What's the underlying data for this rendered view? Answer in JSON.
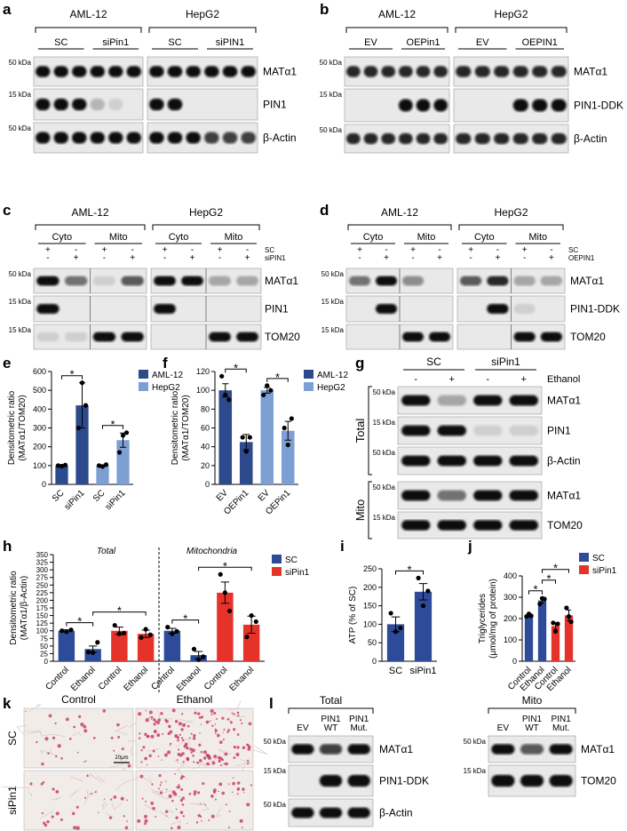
{
  "blots": {
    "a": {
      "letter": "a",
      "groups": [
        {
          "name": "AML-12",
          "subgroups": [
            "SC",
            "siPin1"
          ]
        },
        {
          "name": "HepG2",
          "subgroups": [
            "SC",
            "siPIN1"
          ]
        }
      ],
      "rows": [
        {
          "marker": "50 kDa",
          "protein": "MATα1"
        },
        {
          "marker": "15 kDa",
          "protein": "PIN1"
        },
        {
          "marker": "50 kDa",
          "protein": "β-Actin"
        }
      ]
    },
    "b": {
      "letter": "b",
      "groups": [
        {
          "name": "AML-12",
          "subgroups": [
            "EV",
            "OEPin1"
          ]
        },
        {
          "name": "HepG2",
          "subgroups": [
            "EV",
            "OEPIN1"
          ]
        }
      ],
      "rows": [
        {
          "marker": "50 kDa",
          "protein": "MATα1"
        },
        {
          "marker": "15 kDa",
          "protein": "PIN1-DDK"
        },
        {
          "marker": "50 kDa",
          "protein": "β-Actin"
        }
      ]
    },
    "c": {
      "letter": "c",
      "groups": [
        {
          "name": "AML-12",
          "subgroups": [
            "Cyto",
            "Mito"
          ]
        },
        {
          "name": "HepG2",
          "subgroups": [
            "Cyto",
            "Mito"
          ]
        }
      ],
      "treatments": [
        {
          "name": "SC",
          "signs": [
            "+",
            "-",
            "+",
            "-",
            "+",
            "-",
            "+",
            "-"
          ]
        },
        {
          "name": "siPIN1",
          "signs": [
            "-",
            "+",
            "-",
            "+",
            "-",
            "+",
            "-",
            "+"
          ]
        }
      ],
      "rows": [
        {
          "marker": "50 kDa",
          "protein": "MATα1"
        },
        {
          "marker": "15 kDa",
          "protein": "PIN1"
        },
        {
          "marker": "15 kDa",
          "protein": "TOM20"
        }
      ]
    },
    "d": {
      "letter": "d",
      "groups": [
        {
          "name": "AML-12",
          "subgroups": [
            "Cyto",
            "Mito"
          ]
        },
        {
          "name": "HepG2",
          "subgroups": [
            "Cyto",
            "Mito"
          ]
        }
      ],
      "treatments": [
        {
          "name": "SC",
          "signs": [
            "+",
            "-",
            "+",
            "-",
            "+",
            "-",
            "+",
            "-"
          ]
        },
        {
          "name": "OEPIN1",
          "signs": [
            "-",
            "+",
            "-",
            "+",
            "-",
            "+",
            "-",
            "+"
          ]
        }
      ],
      "rows": [
        {
          "marker": "50 kDa",
          "protein": "MATα1"
        },
        {
          "marker": "15 kDa",
          "protein": "PIN1-DDK"
        },
        {
          "marker": "15 kDa",
          "protein": "TOM20"
        }
      ]
    }
  },
  "blot_g": {
    "letter": "g",
    "subgroups": [
      "SC",
      "siPin1"
    ],
    "treatment": {
      "name": "Ethanol",
      "signs": [
        "-",
        "+",
        "-",
        "+"
      ]
    },
    "sections": [
      {
        "name": "Total",
        "rows": [
          {
            "marker": "50 kDa",
            "protein": "MATα1"
          },
          {
            "marker": "15 kDa",
            "protein": "PIN1"
          },
          {
            "marker": "50 kDa",
            "protein": "β-Actin"
          }
        ]
      },
      {
        "name": "Mito",
        "rows": [
          {
            "marker": "50 kDa",
            "protein": "MATα1"
          },
          {
            "marker": "15 kDa",
            "protein": "TOM20"
          }
        ]
      }
    ]
  },
  "blot_l": {
    "letter": "l",
    "blots": [
      {
        "name": "Total",
        "lanes": [
          [
            "EV"
          ],
          [
            "PIN1",
            "WT"
          ],
          [
            "PIN1",
            "Mut."
          ]
        ],
        "rows": [
          {
            "marker": "50 kDa",
            "protein": "MATα1"
          },
          {
            "marker": "15 kDa",
            "protein": "PIN1-DDK"
          },
          {
            "marker": "50 kDa",
            "protein": "β-Actin"
          }
        ]
      },
      {
        "name": "Mito",
        "lanes": [
          [
            "EV"
          ],
          [
            "PIN1",
            "WT"
          ],
          [
            "PIN1",
            "Mut."
          ]
        ],
        "rows": [
          {
            "marker": "50 kDa",
            "protein": "MATα1"
          },
          {
            "marker": "15 kDa",
            "protein": "TOM20"
          }
        ]
      }
    ]
  },
  "micrograph": {
    "letter": "k",
    "columns": [
      "Control",
      "Ethanol"
    ],
    "rows": [
      "SC",
      "siPin1"
    ],
    "scale_bar": "20μm"
  },
  "chart_data": [
    {
      "type": "bar",
      "letter": "e",
      "ylabel": [
        "Densitometric ratio",
        "(MATα1/TOM20)"
      ],
      "categories": [
        "SC",
        "siPin1",
        "SC",
        "siPin1"
      ],
      "xlabel_rotation": 45,
      "series": [
        {
          "name": "AML-12",
          "color": "#2c4a8c",
          "values": [
            100,
            420,
            null,
            null
          ],
          "errors": [
            3,
            120,
            null,
            null
          ],
          "points": [
            [
              100,
              97,
              103
            ],
            [
              300,
              540,
              420
            ],
            null,
            null
          ]
        },
        {
          "name": "HepG2",
          "color": "#7d9fd4",
          "values": [
            null,
            null,
            100,
            235
          ],
          "errors": [
            null,
            null,
            4,
            38
          ],
          "points": [
            null,
            null,
            [
              100,
              95,
              105
            ],
            [
              170,
              260,
              275
            ]
          ]
        }
      ],
      "ylim": [
        0,
        600
      ],
      "yticks": [
        0,
        100,
        200,
        300,
        400,
        500,
        600
      ],
      "legend": "right",
      "brackets": [
        {
          "between": [
            0,
            1
          ],
          "label": "*"
        },
        {
          "between": [
            2,
            3
          ],
          "label": "*"
        }
      ]
    },
    {
      "type": "bar",
      "letter": "f",
      "ylabel": [
        "Densitometric ratio",
        "(MATα1/TOM20)"
      ],
      "categories": [
        "EV",
        "OEPin1",
        "EV",
        "OEPin1"
      ],
      "xlabel_rotation": 45,
      "series": [
        {
          "name": "AML-12",
          "color": "#2c4a8c",
          "values": [
            100,
            45,
            null,
            null
          ],
          "errors": [
            7,
            8,
            null,
            null
          ],
          "points": [
            [
              115,
              95,
              90
            ],
            [
              50,
              35,
              50
            ],
            null,
            null
          ]
        },
        {
          "name": "HepG2",
          "color": "#7d9fd4",
          "values": [
            null,
            null,
            100,
            57
          ],
          "errors": [
            null,
            null,
            3,
            10
          ],
          "points": [
            null,
            null,
            [
              95,
              105,
              100
            ],
            [
              60,
              42,
              70
            ]
          ]
        }
      ],
      "ylim": [
        0,
        120
      ],
      "yticks": [
        0,
        20,
        40,
        60,
        80,
        100,
        120
      ],
      "legend": "right",
      "brackets": [
        {
          "between": [
            0,
            1
          ],
          "label": "*"
        },
        {
          "between": [
            2,
            3
          ],
          "label": "*"
        }
      ]
    },
    {
      "type": "bar",
      "letter": "h",
      "ylabel": [
        "Densitometric ratio",
        "(MATα1/β-Actin)"
      ],
      "categories": [
        "Control",
        "Ethanol",
        "Control",
        "Ethanol",
        "Control",
        "Ethanol",
        "Control",
        "Ethanol"
      ],
      "xlabel_rotation": 45,
      "sections": [
        {
          "label": "Total",
          "span": [
            0,
            3
          ]
        },
        {
          "label": "Mitochondria",
          "span": [
            4,
            7
          ]
        }
      ],
      "series": [
        {
          "name": "SC",
          "color": "#2e4b9a",
          "values": [
            100,
            40,
            null,
            null,
            100,
            20,
            null,
            null
          ],
          "errors": [
            3,
            10,
            null,
            null,
            8,
            12,
            null,
            null
          ],
          "points": [
            [
              100,
              97,
              103
            ],
            [
              30,
              28,
              62
            ],
            null,
            null,
            [
              112,
              90,
              98
            ],
            [
              40,
              5,
              15
            ],
            null,
            null
          ]
        },
        {
          "name": "siPin1",
          "color": "#e6332a",
          "values": [
            null,
            null,
            100,
            90,
            null,
            null,
            225,
            120
          ],
          "errors": [
            null,
            null,
            12,
            12,
            null,
            null,
            35,
            28
          ],
          "points": [
            null,
            null,
            [
              118,
              90,
              92
            ],
            [
              78,
              105,
              87
            ],
            null,
            null,
            [
              285,
              225,
              165
            ],
            [
              80,
              150,
              130
            ]
          ]
        }
      ],
      "ylim": [
        0,
        350
      ],
      "yticks": [
        0,
        25,
        50,
        75,
        100,
        125,
        150,
        175,
        200,
        225,
        250,
        275,
        300,
        325,
        350
      ],
      "legend": "right",
      "brackets": [
        {
          "between": [
            0,
            1
          ],
          "label": "*"
        },
        {
          "between": [
            1,
            3
          ],
          "label": "*"
        },
        {
          "between": [
            4,
            5
          ],
          "label": "*"
        },
        {
          "between": [
            5,
            7
          ],
          "label": "*"
        }
      ]
    },
    {
      "type": "bar",
      "letter": "i",
      "ylabel": [
        "ATP (% of SC)"
      ],
      "categories": [
        "SC",
        "siPin1"
      ],
      "xlabel_rotation": 0,
      "series": [
        {
          "color": "#2e4b9a",
          "values": [
            100,
            188
          ],
          "errors": [
            20,
            22
          ],
          "points": [
            [
              130,
              80,
              90
            ],
            [
              225,
              150,
              190
            ]
          ]
        }
      ],
      "ylim": [
        0,
        250
      ],
      "yticks": [
        0,
        50,
        100,
        150,
        200,
        250
      ],
      "brackets": [
        {
          "between": [
            0,
            1
          ],
          "label": "*"
        }
      ]
    },
    {
      "type": "bar",
      "letter": "j",
      "ylabel": [
        "Triglycerides",
        "(μmol/mg of protein)"
      ],
      "categories": [
        "Control",
        "Ethanol",
        "Control",
        "Ethanol"
      ],
      "xlabel_rotation": 45,
      "series": [
        {
          "name": "SC",
          "color": "#2e4b9a",
          "values": [
            215,
            285,
            null,
            null
          ],
          "errors": [
            7,
            12,
            null,
            null
          ],
          "points": [
            [
              210,
              222,
              213
            ],
            [
              268,
              295,
              292
            ],
            null,
            null
          ]
        },
        {
          "name": "siPin1",
          "color": "#e6332a",
          "values": [
            null,
            null,
            165,
            215
          ],
          "errors": [
            null,
            null,
            15,
            25
          ],
          "points": [
            null,
            null,
            [
              180,
              140,
              175
            ],
            [
              250,
              210,
              185
            ]
          ]
        }
      ],
      "ylim": [
        0,
        400
      ],
      "yticks": [
        0,
        100,
        200,
        300,
        400
      ],
      "legend": "right",
      "brackets": [
        {
          "between": [
            0,
            1
          ],
          "label": "*"
        },
        {
          "between": [
            1,
            2
          ],
          "label": "*"
        },
        {
          "between": [
            1,
            3
          ],
          "label": "*"
        }
      ]
    }
  ]
}
